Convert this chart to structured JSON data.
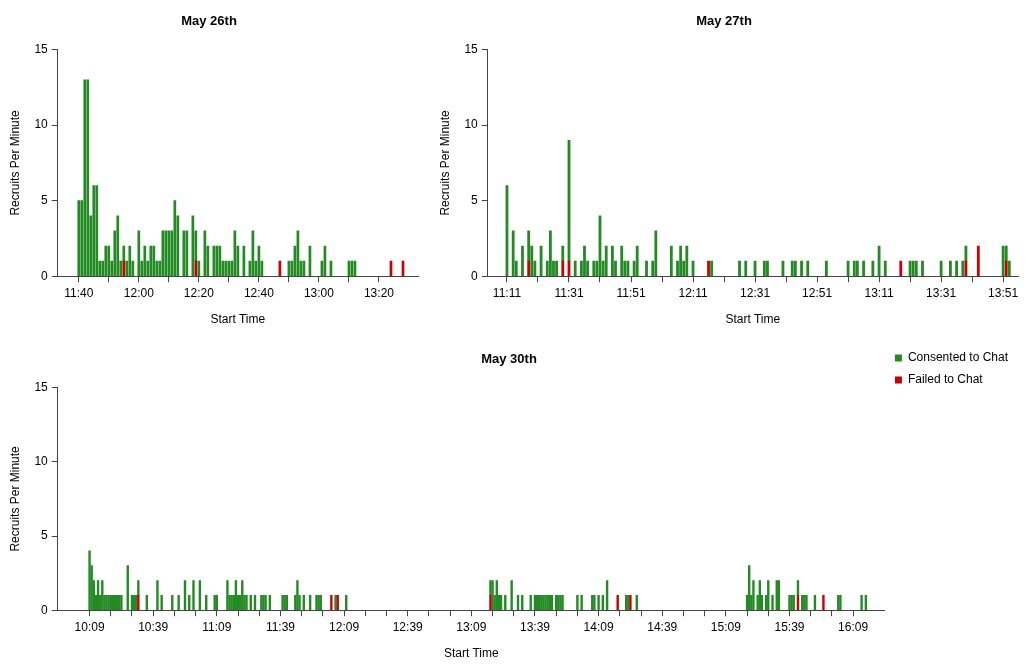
{
  "chart_data": [
    {
      "type": "bar",
      "title": "May 26th",
      "xlabel": "Start Time",
      "ylabel": "Recruits Per Minute",
      "stacked": true,
      "grid": false,
      "legend": false,
      "xlim": [
        11.55,
        13.55
      ],
      "ylim": [
        0,
        15
      ],
      "yticks": [
        0,
        5,
        10,
        15
      ],
      "xticks": [
        {
          "value": 11.6667,
          "label": "11:40"
        },
        {
          "value": 11.8333,
          "label": null
        },
        {
          "value": 12,
          "label": "12:00"
        },
        {
          "value": 12.1667,
          "label": null
        },
        {
          "value": 12.3333,
          "label": "12:20"
        },
        {
          "value": 12.5,
          "label": null
        },
        {
          "value": 12.6667,
          "label": "12:40"
        },
        {
          "value": 12.8333,
          "label": null
        },
        {
          "value": 13,
          "label": "13:00"
        },
        {
          "value": 13.1667,
          "label": null
        },
        {
          "value": 13.3333,
          "label": "13:20"
        }
      ],
      "x": [
        11.6667,
        11.6833,
        11.7,
        11.7167,
        11.7333,
        11.75,
        11.7667,
        11.7833,
        11.8,
        11.8167,
        11.8333,
        11.85,
        11.8667,
        11.8833,
        11.9,
        11.9167,
        11.9333,
        11.95,
        11.9667,
        12,
        12.0167,
        12.0333,
        12.05,
        12.0667,
        12.0833,
        12.1,
        12.1167,
        12.1333,
        12.15,
        12.1667,
        12.1833,
        12.2,
        12.2167,
        12.25,
        12.2667,
        12.3,
        12.3167,
        12.3333,
        12.3667,
        12.3833,
        12.4167,
        12.4333,
        12.45,
        12.4667,
        12.4833,
        12.5,
        12.5167,
        12.5333,
        12.55,
        12.5833,
        12.6167,
        12.6333,
        12.65,
        12.6667,
        12.6833,
        12.7833,
        12.8333,
        12.85,
        12.8667,
        12.8833,
        12.9,
        12.9167,
        12.95,
        13.0167,
        13.0333,
        13.0667,
        13.1667,
        13.1833,
        13.2,
        13.4,
        13.4667
      ],
      "series": [
        {
          "color": "#cd0000",
          "values": [
            null,
            null,
            null,
            null,
            null,
            null,
            null,
            null,
            null,
            null,
            null,
            null,
            null,
            null,
            null,
            1,
            null,
            null,
            null,
            null,
            null,
            null,
            null,
            null,
            null,
            null,
            null,
            null,
            null,
            null,
            null,
            null,
            null,
            null,
            null,
            null,
            1,
            null,
            null,
            null,
            null,
            null,
            null,
            null,
            null,
            null,
            null,
            null,
            null,
            null,
            null,
            null,
            null,
            null,
            null,
            1,
            null,
            null,
            null,
            null,
            null,
            null,
            null,
            null,
            null,
            null,
            null,
            null,
            null,
            1,
            1
          ]
        },
        {
          "color": "#228b22",
          "values": [
            5,
            5,
            13,
            13,
            4,
            6,
            6,
            1,
            1,
            2,
            2,
            1,
            3,
            4,
            1,
            1,
            1,
            2,
            1,
            3,
            1,
            2,
            1,
            2,
            2,
            1,
            1,
            3,
            3,
            3,
            3,
            5,
            4,
            3,
            3,
            4,
            2,
            1,
            3,
            2,
            2,
            2,
            2,
            1,
            1,
            1,
            1,
            3,
            2,
            2,
            1,
            3,
            1,
            2,
            1,
            null,
            1,
            1,
            2,
            3,
            1,
            1,
            2,
            1,
            2,
            1,
            1,
            1,
            1,
            null,
            null
          ]
        }
      ]
    },
    {
      "type": "bar",
      "title": "May 27th",
      "xlabel": "Start Time",
      "ylabel": "Recruits Per Minute",
      "stacked": true,
      "grid": false,
      "legend": false,
      "xlim": [
        11.08,
        13.93
      ],
      "ylim": [
        0,
        15
      ],
      "yticks": [
        0,
        5,
        10,
        15
      ],
      "xticks": [
        {
          "value": 11.1833,
          "label": "11:11"
        },
        {
          "value": 11.35,
          "label": null
        },
        {
          "value": 11.5167,
          "label": "11:31"
        },
        {
          "value": 11.6833,
          "label": null
        },
        {
          "value": 11.85,
          "label": "11:51"
        },
        {
          "value": 12.0167,
          "label": null
        },
        {
          "value": 12.1833,
          "label": "12:11"
        },
        {
          "value": 12.35,
          "label": null
        },
        {
          "value": 12.5167,
          "label": "12:31"
        },
        {
          "value": 12.6833,
          "label": null
        },
        {
          "value": 12.85,
          "label": "12:51"
        },
        {
          "value": 13.0167,
          "label": null
        },
        {
          "value": 13.1833,
          "label": "13:11"
        },
        {
          "value": 13.35,
          "label": null
        },
        {
          "value": 13.5167,
          "label": "13:31"
        },
        {
          "value": 13.6833,
          "label": null
        },
        {
          "value": 13.85,
          "label": "13:51"
        }
      ],
      "x": [
        11.1833,
        11.2167,
        11.2333,
        11.2667,
        11.3,
        11.3167,
        11.3333,
        11.3667,
        11.4,
        11.4167,
        11.4333,
        11.45,
        11.4833,
        11.5167,
        11.55,
        11.5833,
        11.6,
        11.6167,
        11.65,
        11.6667,
        11.6833,
        11.7,
        11.7167,
        11.75,
        11.7667,
        11.8,
        11.8167,
        11.8333,
        11.8667,
        11.8833,
        11.9333,
        11.9667,
        11.9833,
        12.0667,
        12.1,
        12.1167,
        12.1333,
        12.15,
        12.1833,
        12.2667,
        12.2833,
        12.4333,
        12.4667,
        12.5167,
        12.5667,
        12.5833,
        12.6667,
        12.7167,
        12.7333,
        12.7667,
        12.8,
        12.9,
        13.0167,
        13.05,
        13.0667,
        13.1,
        13.15,
        13.1833,
        13.2167,
        13.3,
        13.35,
        13.3667,
        13.3833,
        13.4167,
        13.5167,
        13.5667,
        13.6,
        13.6333,
        13.65,
        13.7167,
        13.85,
        13.8667,
        13.8833
      ],
      "series": [
        {
          "color": "#cd0000",
          "values": [
            null,
            null,
            null,
            null,
            1,
            null,
            null,
            null,
            null,
            null,
            null,
            null,
            1,
            1,
            null,
            null,
            null,
            null,
            null,
            null,
            null,
            null,
            null,
            null,
            null,
            null,
            null,
            null,
            null,
            null,
            null,
            null,
            null,
            null,
            null,
            null,
            null,
            null,
            null,
            1,
            null,
            null,
            null,
            null,
            null,
            null,
            null,
            null,
            null,
            null,
            null,
            null,
            null,
            null,
            null,
            null,
            null,
            null,
            null,
            1,
            null,
            null,
            null,
            null,
            null,
            null,
            null,
            null,
            1,
            2,
            null,
            1,
            null
          ]
        },
        {
          "color": "#228b22",
          "values": [
            6,
            3,
            1,
            2,
            2,
            2,
            1,
            2,
            1,
            3,
            1,
            1,
            1,
            8,
            1,
            1,
            2,
            1,
            1,
            1,
            4,
            1,
            2,
            2,
            1,
            2,
            1,
            1,
            1,
            2,
            1,
            1,
            3,
            2,
            1,
            2,
            1,
            2,
            1,
            null,
            1,
            1,
            1,
            1,
            1,
            1,
            1,
            1,
            1,
            1,
            1,
            1,
            1,
            1,
            1,
            1,
            1,
            2,
            1,
            null,
            1,
            1,
            1,
            1,
            1,
            1,
            1,
            1,
            1,
            null,
            2,
            1,
            1
          ]
        }
      ]
    },
    {
      "type": "bar",
      "title": "May 30th",
      "xlabel": "Start Time",
      "ylabel": "Recruits Per Minute",
      "stacked": true,
      "grid": false,
      "legend": "top right",
      "xlim": [
        9.9,
        16.4
      ],
      "ylim": [
        0,
        15
      ],
      "yticks": [
        0,
        5,
        10,
        15
      ],
      "xticks": [
        {
          "value": 10.15,
          "label": "10:09"
        },
        {
          "value": 10.3167,
          "label": null
        },
        {
          "value": 10.4833,
          "label": null
        },
        {
          "value": 10.65,
          "label": "10:39"
        },
        {
          "value": 10.8167,
          "label": null
        },
        {
          "value": 10.9833,
          "label": null
        },
        {
          "value": 11.15,
          "label": "11:09"
        },
        {
          "value": 11.3167,
          "label": null
        },
        {
          "value": 11.4833,
          "label": null
        },
        {
          "value": 11.65,
          "label": "11:39"
        },
        {
          "value": 11.8167,
          "label": null
        },
        {
          "value": 11.9833,
          "label": null
        },
        {
          "value": 12.15,
          "label": "12:09"
        },
        {
          "value": 12.3167,
          "label": null
        },
        {
          "value": 12.4833,
          "label": null
        },
        {
          "value": 12.65,
          "label": "12:39"
        },
        {
          "value": 12.8167,
          "label": null
        },
        {
          "value": 12.9833,
          "label": null
        },
        {
          "value": 13.15,
          "label": "13:09"
        },
        {
          "value": 13.3167,
          "label": null
        },
        {
          "value": 13.4833,
          "label": null
        },
        {
          "value": 13.65,
          "label": "13:39"
        },
        {
          "value": 13.8167,
          "label": null
        },
        {
          "value": 13.9833,
          "label": null
        },
        {
          "value": 14.15,
          "label": "14:09"
        },
        {
          "value": 14.3167,
          "label": null
        },
        {
          "value": 14.4833,
          "label": null
        },
        {
          "value": 14.65,
          "label": "14:39"
        },
        {
          "value": 14.8167,
          "label": null
        },
        {
          "value": 14.9833,
          "label": null
        },
        {
          "value": 15.15,
          "label": "15:09"
        },
        {
          "value": 15.3167,
          "label": null
        },
        {
          "value": 15.4833,
          "label": null
        },
        {
          "value": 15.65,
          "label": "15:39"
        },
        {
          "value": 15.8167,
          "label": null
        },
        {
          "value": 15.9833,
          "label": null
        },
        {
          "value": 16.15,
          "label": "16:09"
        }
      ],
      "x": [
        10.15,
        10.1667,
        10.1833,
        10.2,
        10.2167,
        10.2333,
        10.25,
        10.2667,
        10.2833,
        10.3,
        10.3167,
        10.3333,
        10.35,
        10.3667,
        10.3833,
        10.4,
        10.45,
        10.4833,
        10.5,
        10.5167,
        10.5333,
        10.6,
        10.6833,
        10.7167,
        10.8,
        10.85,
        10.9,
        10.9333,
        10.9667,
        11.0167,
        11.0667,
        11.1333,
        11.15,
        11.2333,
        11.25,
        11.2667,
        11.2833,
        11.3,
        11.3167,
        11.3333,
        11.35,
        11.3667,
        11.3833,
        11.4167,
        11.45,
        11.5,
        11.5167,
        11.5333,
        11.5667,
        11.6667,
        11.6833,
        11.7,
        11.7667,
        11.7833,
        11.8,
        11.8333,
        11.8833,
        11.9333,
        11.95,
        11.9667,
        12.05,
        12.0833,
        12.1,
        12.1667,
        13.3,
        13.3167,
        13.3333,
        13.35,
        13.3667,
        13.3833,
        13.4167,
        13.4667,
        13.5167,
        13.55,
        13.6167,
        13.65,
        13.6667,
        13.6833,
        13.7,
        13.7167,
        13.7333,
        13.75,
        13.7667,
        13.7833,
        13.8167,
        13.8333,
        13.85,
        13.8667,
        13.9833,
        14.0167,
        14.1,
        14.1167,
        14.15,
        14.1833,
        14.2167,
        14.3,
        14.3667,
        14.3833,
        14.4,
        14.45,
        15.3167,
        15.3333,
        15.35,
        15.3667,
        15.4,
        15.4167,
        15.4333,
        15.4667,
        15.4833,
        15.5167,
        15.55,
        15.5667,
        15.65,
        15.6667,
        15.6833,
        15.7167,
        15.75,
        15.7667,
        15.7833,
        15.85,
        15.9167,
        16.0333,
        16.05,
        16.2167,
        16.25
      ],
      "series": [
        {
          "name": "Failed to Chat",
          "color": "#cd0000",
          "values": [
            null,
            null,
            null,
            null,
            null,
            null,
            null,
            null,
            null,
            null,
            null,
            null,
            null,
            null,
            null,
            null,
            null,
            null,
            null,
            null,
            1,
            null,
            null,
            null,
            null,
            null,
            null,
            null,
            null,
            null,
            null,
            null,
            null,
            null,
            null,
            null,
            null,
            null,
            null,
            null,
            null,
            null,
            null,
            null,
            null,
            null,
            null,
            null,
            null,
            null,
            null,
            null,
            null,
            null,
            null,
            null,
            null,
            null,
            null,
            null,
            1,
            null,
            1,
            null,
            1,
            null,
            null,
            null,
            null,
            null,
            null,
            null,
            null,
            null,
            null,
            null,
            null,
            null,
            null,
            null,
            null,
            null,
            null,
            null,
            null,
            null,
            null,
            null,
            null,
            null,
            null,
            null,
            null,
            null,
            null,
            1,
            null,
            null,
            1,
            null,
            null,
            null,
            null,
            null,
            null,
            null,
            null,
            null,
            null,
            null,
            null,
            null,
            null,
            null,
            null,
            1,
            null,
            null,
            null,
            null,
            1,
            null,
            null,
            null,
            null
          ]
        },
        {
          "name": "Consented to Chat",
          "color": "#228b22",
          "values": [
            4,
            3,
            2,
            1,
            2,
            1,
            2,
            1,
            1,
            1,
            1,
            1,
            1,
            1,
            1,
            1,
            3,
            1,
            1,
            1,
            1,
            1,
            2,
            1,
            1,
            1,
            2,
            1,
            2,
            2,
            1,
            1,
            1,
            2,
            1,
            1,
            1,
            2,
            1,
            1,
            2,
            1,
            1,
            1,
            1,
            1,
            1,
            1,
            1,
            1,
            1,
            1,
            1,
            2,
            1,
            1,
            1,
            1,
            1,
            1,
            null,
            1,
            null,
            1,
            1,
            2,
            1,
            2,
            1,
            1,
            1,
            2,
            1,
            1,
            1,
            1,
            1,
            1,
            1,
            1,
            1,
            1,
            1,
            1,
            1,
            1,
            1,
            1,
            1,
            1,
            1,
            1,
            1,
            1,
            2,
            null,
            1,
            1,
            null,
            1,
            1,
            3,
            1,
            2,
            1,
            2,
            1,
            1,
            2,
            1,
            2,
            2,
            1,
            1,
            1,
            1,
            1,
            1,
            1,
            1,
            null,
            1,
            1,
            1,
            1
          ]
        }
      ]
    }
  ]
}
